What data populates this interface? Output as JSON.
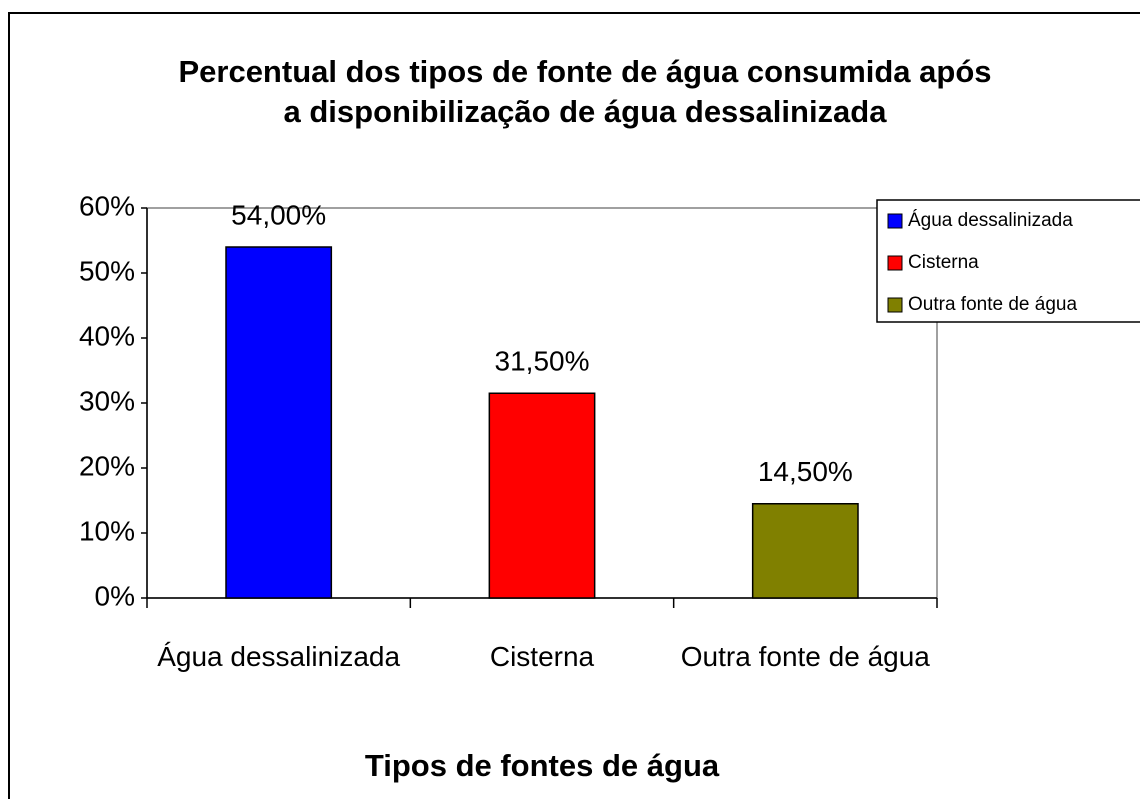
{
  "chart_data": {
    "type": "bar",
    "title": "Percentual dos tipos de fonte de água consumida após a disponibilização de água dessalinizada",
    "x_label": "Tipos de fontes de água",
    "categories": [
      "Água dessalinizada",
      "Cisterna",
      "Outra fonte de água"
    ],
    "values": [
      54,
      31.5,
      14.5
    ],
    "value_labels": [
      "54,00%",
      "31,50%",
      "14,50%"
    ],
    "colors": [
      "#0000ff",
      "#ff0000",
      "#808000"
    ],
    "ylim": [
      0,
      60
    ],
    "yticks": [
      {
        "value": 0,
        "label": "0%"
      },
      {
        "value": 10,
        "label": "10%"
      },
      {
        "value": 20,
        "label": "20%"
      },
      {
        "value": 30,
        "label": "30%"
      },
      {
        "value": 40,
        "label": "40%"
      },
      {
        "value": 50,
        "label": "50%"
      },
      {
        "value": 60,
        "label": "60%"
      }
    ],
    "grid": false,
    "legend": "right"
  }
}
